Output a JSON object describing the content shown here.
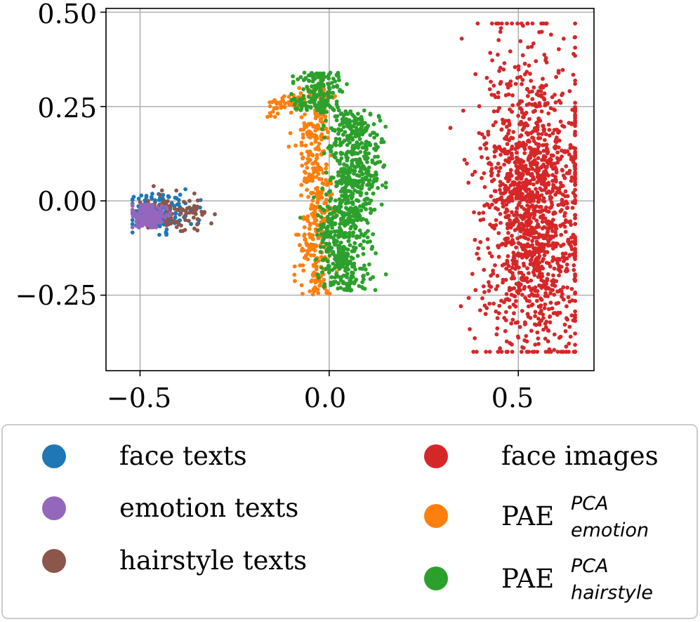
{
  "chart_data": {
    "type": "scatter",
    "title": "",
    "xlabel": "",
    "ylabel": "",
    "xlim": [
      -0.59,
      0.7
    ],
    "ylim": [
      -0.45,
      0.51
    ],
    "x_ticks": [
      -0.5,
      0.0,
      0.5
    ],
    "x_tick_labels": [
      "−0.5",
      "0.0",
      "0.5"
    ],
    "y_ticks": [
      0.5,
      0.25,
      0.0,
      -0.25
    ],
    "y_tick_labels": [
      "0.50",
      "0.25",
      "0.00",
      "−0.25"
    ],
    "grid": true,
    "legend_position": "below",
    "series": [
      {
        "id": "face_texts",
        "name": "face texts",
        "color": "#1f77b4",
        "count": 160,
        "center": [
          -0.45,
          -0.03
        ],
        "spread": [
          0.045,
          0.025
        ],
        "x_range": [
          -0.52,
          -0.34
        ],
        "y_range": [
          -0.09,
          0.05
        ]
      },
      {
        "id": "hairstyle_texts",
        "name": "hairstyle texts",
        "color": "#8c564b",
        "count": 90,
        "center": [
          -0.41,
          -0.03
        ],
        "spread": [
          0.05,
          0.025
        ],
        "x_range": [
          -0.5,
          -0.29
        ],
        "y_range": [
          -0.08,
          0.06
        ]
      },
      {
        "id": "emotion_texts",
        "name": "emotion texts",
        "color": "#9467bd",
        "count": 200,
        "center": [
          -0.48,
          -0.04
        ],
        "spread": [
          0.022,
          0.016
        ],
        "x_range": [
          -0.52,
          -0.42
        ],
        "y_range": [
          -0.07,
          -0.01
        ]
      },
      {
        "id": "face_images",
        "name": "face images",
        "color": "#d62728",
        "count": 1500,
        "center": [
          0.54,
          -0.02
        ],
        "spread": [
          0.07,
          0.2
        ],
        "x_range": [
          0.32,
          0.65
        ],
        "y_range": [
          -0.4,
          0.47
        ]
      },
      {
        "id": "pae_emotion",
        "name_base": "PAE",
        "name_sup": "PCA",
        "name_sub": "emotion",
        "color": "#ff7f0e",
        "count": 450,
        "center": [
          -0.03,
          0.0
        ],
        "spread": [
          0.03,
          0.15
        ],
        "x_range": [
          -0.17,
          0.02
        ],
        "y_range": [
          -0.25,
          0.31
        ]
      },
      {
        "id": "pae_hairstyle",
        "name_base": "PAE",
        "name_sup": "PCA",
        "name_sub": "hairstyle",
        "color": "#2ca02c",
        "count": 1000,
        "center": [
          0.06,
          0.0
        ],
        "spread": [
          0.035,
          0.13
        ],
        "x_range": [
          -0.1,
          0.15
        ],
        "y_range": [
          -0.24,
          0.34
        ]
      }
    ]
  },
  "legend": {
    "items": [
      {
        "label": "face texts",
        "color": "#1f77b4"
      },
      {
        "label": "emotion texts",
        "color": "#9467bd"
      },
      {
        "label": "hairstyle texts",
        "color": "#8c564b"
      },
      {
        "label": "face images",
        "color": "#d62728"
      },
      {
        "label_base": "PAE",
        "label_sup": "PCA",
        "label_sub": "emotion",
        "color": "#ff7f0e"
      },
      {
        "label_base": "PAE",
        "label_sup": "PCA",
        "label_sub": "hairstyle",
        "color": "#2ca02c"
      }
    ]
  }
}
